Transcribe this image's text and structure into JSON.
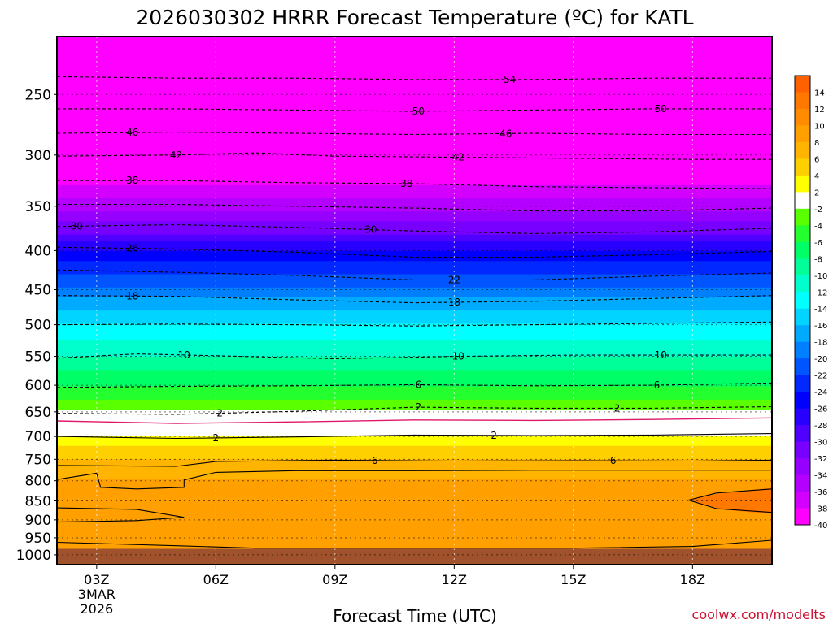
{
  "chart_data": {
    "type": "heatmap",
    "title": "2026030302 HRRR Forecast Temperature (ºC) for KATL",
    "xlabel": "Forecast Time (UTC)",
    "ylabel": "",
    "credit": "coolwx.com/modelts",
    "x_range_hours": [
      2,
      20
    ],
    "y_range_hpa": [
      210,
      1030
    ],
    "y_scale": "log-pressure",
    "x_ticks": [
      {
        "hour": 3,
        "label": "03Z",
        "sub1": "3MAR",
        "sub2": "2026"
      },
      {
        "hour": 6,
        "label": "06Z"
      },
      {
        "hour": 9,
        "label": "09Z"
      },
      {
        "hour": 12,
        "label": "12Z"
      },
      {
        "hour": 15,
        "label": "15Z"
      },
      {
        "hour": 18,
        "label": "18Z"
      }
    ],
    "y_ticks": [
      250,
      300,
      350,
      400,
      450,
      500,
      550,
      600,
      650,
      700,
      750,
      800,
      850,
      900,
      950,
      1000
    ],
    "colorbar": {
      "levels": [
        14,
        12,
        10,
        8,
        6,
        4,
        2,
        -2,
        -4,
        -6,
        -8,
        -10,
        -12,
        -14,
        -16,
        -18,
        -20,
        -22,
        -24,
        -26,
        -28,
        -30,
        -32,
        -34,
        -36,
        -38,
        -40
      ],
      "colors": [
        "#ff6000",
        "#ff7800",
        "#ff8c00",
        "#ffa000",
        "#ffb400",
        "#ffd000",
        "#ffff00",
        "#ffffff",
        "#5aff00",
        "#24ff30",
        "#00ff66",
        "#00ff99",
        "#00ffcc",
        "#00ffff",
        "#00d4ff",
        "#00aaff",
        "#0080ff",
        "#0055ff",
        "#0028ff",
        "#0000ff",
        "#2800ff",
        "#5000ff",
        "#7800ff",
        "#9600ff",
        "#b400ff",
        "#d400ff",
        "#ff00ff"
      ]
    },
    "profile": [
      {
        "p": 210,
        "t": -60
      },
      {
        "p": 250,
        "t": -55
      },
      {
        "p": 300,
        "t": -44
      },
      {
        "p": 330,
        "t": -38
      },
      {
        "p": 350,
        "t": -35
      },
      {
        "p": 380,
        "t": -30
      },
      {
        "p": 400,
        "t": -26
      },
      {
        "p": 430,
        "t": -22
      },
      {
        "p": 460,
        "t": -18
      },
      {
        "p": 500,
        "t": -14
      },
      {
        "p": 550,
        "t": -10
      },
      {
        "p": 600,
        "t": -6
      },
      {
        "p": 640,
        "t": -3
      },
      {
        "p": 655,
        "t": -1
      },
      {
        "p": 690,
        "t": 1.5
      },
      {
        "p": 720,
        "t": 4
      },
      {
        "p": 760,
        "t": 7
      },
      {
        "p": 850,
        "t": 9.5
      },
      {
        "p": 950,
        "t": 10
      },
      {
        "p": 1000,
        "t": 9
      },
      {
        "p": 1030,
        "t": 9
      }
    ],
    "contour_lines": [
      {
        "value": -54,
        "label": "54",
        "label_hour": 13.4,
        "dash": true,
        "points": [
          [
            2,
            237
          ],
          [
            5,
            238
          ],
          [
            8,
            238
          ],
          [
            11,
            239
          ],
          [
            14,
            239
          ],
          [
            17,
            238
          ],
          [
            20,
            238
          ]
        ]
      },
      {
        "value": -50,
        "label": "50",
        "label_hour": 11.1,
        "dash": true,
        "points": [
          [
            2,
            261
          ],
          [
            5,
            261
          ],
          [
            8,
            262
          ],
          [
            11,
            263
          ],
          [
            14,
            262
          ],
          [
            17,
            261
          ],
          [
            20,
            261
          ]
        ]
      },
      {
        "value": -50,
        "label": "50",
        "label_hour": 17.2,
        "dash": true,
        "points": []
      },
      {
        "value": -46,
        "label": "46",
        "label_hour": 3.9,
        "dash": true,
        "points": [
          [
            2,
            281
          ],
          [
            5,
            280
          ],
          [
            8,
            281
          ],
          [
            11,
            282
          ],
          [
            14,
            281
          ],
          [
            17,
            282
          ],
          [
            20,
            282
          ]
        ]
      },
      {
        "value": -46,
        "label": "46",
        "label_hour": 13.3,
        "dash": true,
        "points": []
      },
      {
        "value": -42,
        "label": "42",
        "label_hour": 5.0,
        "dash": true,
        "points": [
          [
            2,
            301
          ],
          [
            5,
            300
          ],
          [
            7,
            298
          ],
          [
            9,
            301
          ],
          [
            12,
            302
          ],
          [
            15,
            303
          ],
          [
            18,
            304
          ],
          [
            20,
            304
          ]
        ]
      },
      {
        "value": -42,
        "label": "42",
        "label_hour": 12.1,
        "dash": true,
        "points": []
      },
      {
        "value": -38,
        "label": "38",
        "label_hour": 3.9,
        "dash": true,
        "points": [
          [
            2,
            324
          ],
          [
            5,
            324
          ],
          [
            8,
            326
          ],
          [
            11,
            327
          ],
          [
            14,
            330
          ],
          [
            17,
            331
          ],
          [
            20,
            332
          ]
        ]
      },
      {
        "value": -38,
        "label": "38",
        "label_hour": 10.8,
        "dash": true,
        "points": []
      },
      {
        "value": -34,
        "label": "",
        "label_hour": 0,
        "dash": true,
        "points": [
          [
            2,
            348
          ],
          [
            5,
            348
          ],
          [
            8,
            350
          ],
          [
            11,
            352
          ],
          [
            14,
            355
          ],
          [
            17,
            355
          ],
          [
            20,
            352
          ]
        ]
      },
      {
        "value": -30,
        "label": "30",
        "label_hour": 2.5,
        "dash": true,
        "points": [
          [
            2,
            372
          ],
          [
            5,
            370
          ],
          [
            8,
            373
          ],
          [
            11,
            377
          ],
          [
            14,
            380
          ],
          [
            17,
            378
          ],
          [
            20,
            374
          ]
        ]
      },
      {
        "value": -30,
        "label": "30",
        "label_hour": 9.9,
        "dash": true,
        "points": []
      },
      {
        "value": -26,
        "label": "26",
        "label_hour": 3.9,
        "dash": true,
        "points": [
          [
            2,
            396
          ],
          [
            5,
            398
          ],
          [
            8,
            402
          ],
          [
            11,
            408
          ],
          [
            14,
            408
          ],
          [
            17,
            405
          ],
          [
            20,
            401
          ]
        ]
      },
      {
        "value": -22,
        "label": "22",
        "label_hour": 12.0,
        "dash": true,
        "points": [
          [
            2,
            424
          ],
          [
            5,
            427
          ],
          [
            8,
            431
          ],
          [
            11,
            437
          ],
          [
            14,
            437
          ],
          [
            17,
            432
          ],
          [
            20,
            428
          ]
        ]
      },
      {
        "value": -18,
        "label": "18",
        "label_hour": 3.9,
        "dash": true,
        "points": [
          [
            2,
            458
          ],
          [
            5,
            459
          ],
          [
            8,
            464
          ],
          [
            11,
            468
          ],
          [
            14,
            466
          ],
          [
            17,
            462
          ],
          [
            20,
            458
          ]
        ]
      },
      {
        "value": -18,
        "label": "18",
        "label_hour": 12.0,
        "dash": true,
        "points": []
      },
      {
        "value": -14,
        "label": "",
        "label_hour": 0,
        "dash": true,
        "points": [
          [
            2,
            500
          ],
          [
            5,
            499
          ],
          [
            8,
            500
          ],
          [
            11,
            502
          ],
          [
            14,
            500
          ],
          [
            17,
            498
          ],
          [
            20,
            496
          ]
        ]
      },
      {
        "value": -10,
        "label": "10",
        "label_hour": 5.2,
        "dash": true,
        "points": [
          [
            2,
            553
          ],
          [
            4,
            546
          ],
          [
            6,
            549
          ],
          [
            9,
            554
          ],
          [
            12,
            550
          ],
          [
            15,
            548
          ],
          [
            18,
            548
          ],
          [
            20,
            548
          ]
        ]
      },
      {
        "value": -10,
        "label": "10",
        "label_hour": 12.1,
        "dash": true,
        "points": []
      },
      {
        "value": -10,
        "label": "10",
        "label_hour": 17.2,
        "dash": true,
        "points": []
      },
      {
        "value": -6,
        "label": "6",
        "label_hour": 11.1,
        "dash": true,
        "points": [
          [
            2,
            604
          ],
          [
            5,
            602
          ],
          [
            8,
            601
          ],
          [
            11,
            599
          ],
          [
            14,
            601
          ],
          [
            17,
            600
          ],
          [
            20,
            596
          ]
        ]
      },
      {
        "value": -6,
        "label": "6",
        "label_hour": 17.1,
        "dash": true,
        "points": []
      },
      {
        "value": -2,
        "label": "2",
        "label_hour": 6.1,
        "dash": true,
        "points": [
          [
            2,
            653
          ],
          [
            5,
            655
          ],
          [
            8,
            649
          ],
          [
            11,
            641
          ],
          [
            14,
            643
          ],
          [
            17,
            643
          ],
          [
            20,
            640
          ]
        ]
      },
      {
        "value": -2,
        "label": "2",
        "label_hour": 11.1,
        "dash": true,
        "points": []
      },
      {
        "value": -2,
        "label": "2",
        "label_hour": 16.1,
        "dash": true,
        "points": []
      },
      {
        "value": 0,
        "label": "",
        "label_hour": 0,
        "dash": false,
        "color": "#e0186c",
        "points": [
          [
            2,
            668
          ],
          [
            5,
            673
          ],
          [
            8,
            670
          ],
          [
            11,
            666
          ],
          [
            14,
            667
          ],
          [
            17,
            665
          ],
          [
            20,
            662
          ]
        ]
      },
      {
        "value": 2,
        "label": "2",
        "label_hour": 6.0,
        "dash": false,
        "points": [
          [
            2,
            700
          ],
          [
            5,
            704
          ],
          [
            8,
            701
          ],
          [
            11,
            697
          ],
          [
            14,
            698
          ],
          [
            17,
            697
          ],
          [
            20,
            694
          ]
        ]
      },
      {
        "value": 2,
        "label": "2",
        "label_hour": 13.0,
        "dash": false,
        "points": []
      },
      {
        "value": 6,
        "label": "6",
        "label_hour": 10.0,
        "dash": false,
        "points": [
          [
            2,
            764
          ],
          [
            5,
            766
          ],
          [
            6,
            755
          ],
          [
            9,
            752
          ],
          [
            12,
            754
          ],
          [
            15,
            753
          ],
          [
            18,
            754
          ],
          [
            20,
            752
          ]
        ]
      },
      {
        "value": 6,
        "label": "6",
        "label_hour": 16.0,
        "dash": false,
        "points": []
      },
      {
        "value": 10,
        "label": "",
        "label_hour": 0,
        "dash": false,
        "points": [
          [
            2,
            797
          ],
          [
            3,
            782
          ],
          [
            3.1,
            816
          ],
          [
            4,
            820
          ],
          [
            5.2,
            816
          ],
          [
            5.2,
            798
          ],
          [
            6,
            780
          ],
          [
            8,
            776
          ],
          [
            11,
            776
          ],
          [
            14,
            775
          ],
          [
            17,
            775
          ],
          [
            20,
            775
          ]
        ]
      },
      {
        "value": 10,
        "label": "",
        "label_hour": 0,
        "dash": false,
        "points": [
          [
            2,
            868
          ],
          [
            4,
            872
          ],
          [
            5.2,
            893
          ],
          [
            4,
            902
          ],
          [
            2,
            906
          ]
        ]
      },
      {
        "value": 10,
        "label": "",
        "label_hour": 0,
        "dash": false,
        "points": [
          [
            20,
            820
          ],
          [
            18.6,
            830
          ],
          [
            17.9,
            848
          ],
          [
            18.6,
            870
          ],
          [
            20,
            880
          ]
        ]
      },
      {
        "value": 10,
        "label": "",
        "label_hour": 0,
        "dash": false,
        "points": [
          [
            2,
            963
          ],
          [
            5,
            973
          ],
          [
            7,
            980
          ],
          [
            15,
            980
          ],
          [
            18,
            975
          ],
          [
            20,
            957
          ]
        ]
      }
    ],
    "annotations": [
      "coolwx.com/modelts"
    ]
  }
}
